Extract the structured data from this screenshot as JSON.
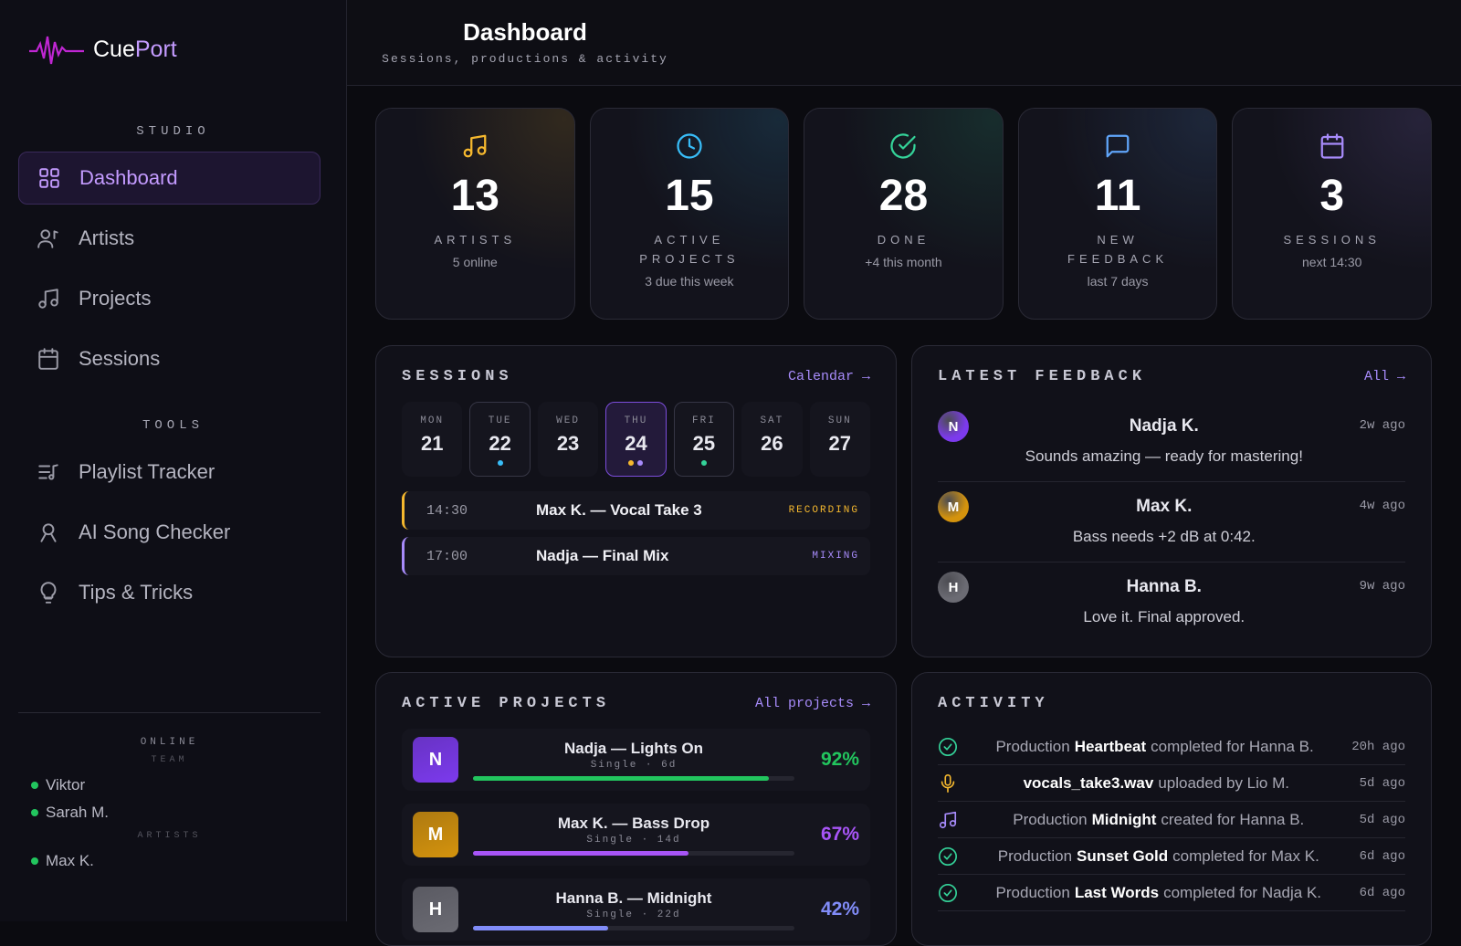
{
  "brand": {
    "first": "Cue",
    "second": "Port"
  },
  "header": {
    "title": "Dashboard",
    "subtitle": "Sessions, productions & activity"
  },
  "sidebar": {
    "sections": [
      {
        "title": "STUDIO",
        "items": [
          "Dashboard",
          "Artists",
          "Projects",
          "Sessions"
        ]
      },
      {
        "title": "TOOLS",
        "items": [
          "Playlist Tracker",
          "AI Song Checker",
          "Tips & Tricks"
        ]
      }
    ],
    "online": {
      "title": "ONLINE",
      "groups": [
        {
          "title": "TEAM",
          "members": [
            "Viktor",
            "Sarah M."
          ]
        },
        {
          "title": "ARTISTS",
          "members": [
            "Max K."
          ]
        }
      ]
    }
  },
  "stats": [
    {
      "value": 13,
      "label": "ARTISTS",
      "note": "5 online",
      "color": "#f5b82e"
    },
    {
      "value": 15,
      "label": "ACTIVE PROJECTS",
      "note": "3 due this week",
      "color": "#38bdf8"
    },
    {
      "value": 28,
      "label": "DONE",
      "note": "+4 this month",
      "color": "#34d399"
    },
    {
      "value": 11,
      "label": "NEW FEEDBACK",
      "note": "last 7 days",
      "color": "#60a5fa"
    },
    {
      "value": 3,
      "label": "SESSIONS",
      "note": "next 14:30",
      "color": "#a78bfa"
    }
  ],
  "sessions": {
    "title": "SESSIONS",
    "link": "Calendar →",
    "days": [
      {
        "day": "MON",
        "date": 21,
        "dots": []
      },
      {
        "day": "TUE",
        "date": 22,
        "dots": [
          "#38bdf8"
        ]
      },
      {
        "day": "WED",
        "date": 23,
        "dots": []
      },
      {
        "day": "THU",
        "date": 24,
        "dots": [
          "#f5b82e",
          "#a78bfa"
        ],
        "selected": true
      },
      {
        "day": "FRI",
        "date": 25,
        "dots": [
          "#34d399"
        ]
      },
      {
        "day": "SAT",
        "date": 26,
        "dots": []
      },
      {
        "day": "SUN",
        "date": 27,
        "dots": []
      }
    ],
    "events": [
      {
        "time": "14:30",
        "title": "Max K. — Vocal Take 3",
        "tag": "RECORDING",
        "color": "#f5b82e"
      },
      {
        "time": "17:00",
        "title": "Nadja — Final Mix",
        "tag": "MIXING",
        "color": "#a78bfa"
      }
    ]
  },
  "feedback": {
    "title": "LATEST FEEDBACK",
    "link": "All →",
    "items": [
      {
        "initial": "N",
        "name": "Nadja K.",
        "time": "2w ago",
        "text": "Sounds amazing — ready for mastering!",
        "color": "#7c3aed"
      },
      {
        "initial": "M",
        "name": "Max K.",
        "time": "4w ago",
        "text": "Bass needs +2 dB at 0:42.",
        "color": "#d4930d"
      },
      {
        "initial": "H",
        "name": "Hanna B.",
        "time": "9w ago",
        "text": "Love it. Final approved.",
        "color": "#6b6b73"
      }
    ]
  },
  "projects": {
    "title": "ACTIVE PROJECTS",
    "link": "All projects →",
    "items": [
      {
        "initial": "N",
        "name": "Nadja — Lights On",
        "meta": "Single · 6d",
        "progress": {
          "value": 92,
          "label": "92%"
        },
        "color": "#22c55e",
        "avatar": "#7c3aed"
      },
      {
        "initial": "M",
        "name": "Max K. — Bass Drop",
        "meta": "Single · 14d",
        "progress": {
          "value": 67,
          "label": "67%"
        },
        "color": "#a855f7",
        "avatar": "#d4930d"
      },
      {
        "initial": "H",
        "name": "Hanna B. — Midnight",
        "meta": "Single · 22d",
        "progress": {
          "value": 42,
          "label": "42%"
        },
        "color": "#818cf8",
        "avatar": "#6b6b73"
      }
    ]
  },
  "activity": {
    "title": "ACTIVITY",
    "items": [
      {
        "pre": "Production",
        "bold": "Heartbeat",
        "post": "completed for Hanna B.",
        "time": "20h ago"
      },
      {
        "bold": "vocals_take3.wav",
        "post": "uploaded by Lio M.",
        "time": "5d ago"
      },
      {
        "pre": "Production",
        "bold": "Midnight",
        "post": "created for Hanna B.",
        "time": "5d ago"
      },
      {
        "pre": "Production",
        "bold": "Sunset Gold",
        "post": "completed for Max K.",
        "time": "6d ago"
      },
      {
        "pre": "Production",
        "bold": "Last Words",
        "post": "completed for Nadja K.",
        "time": "6d ago"
      }
    ]
  }
}
